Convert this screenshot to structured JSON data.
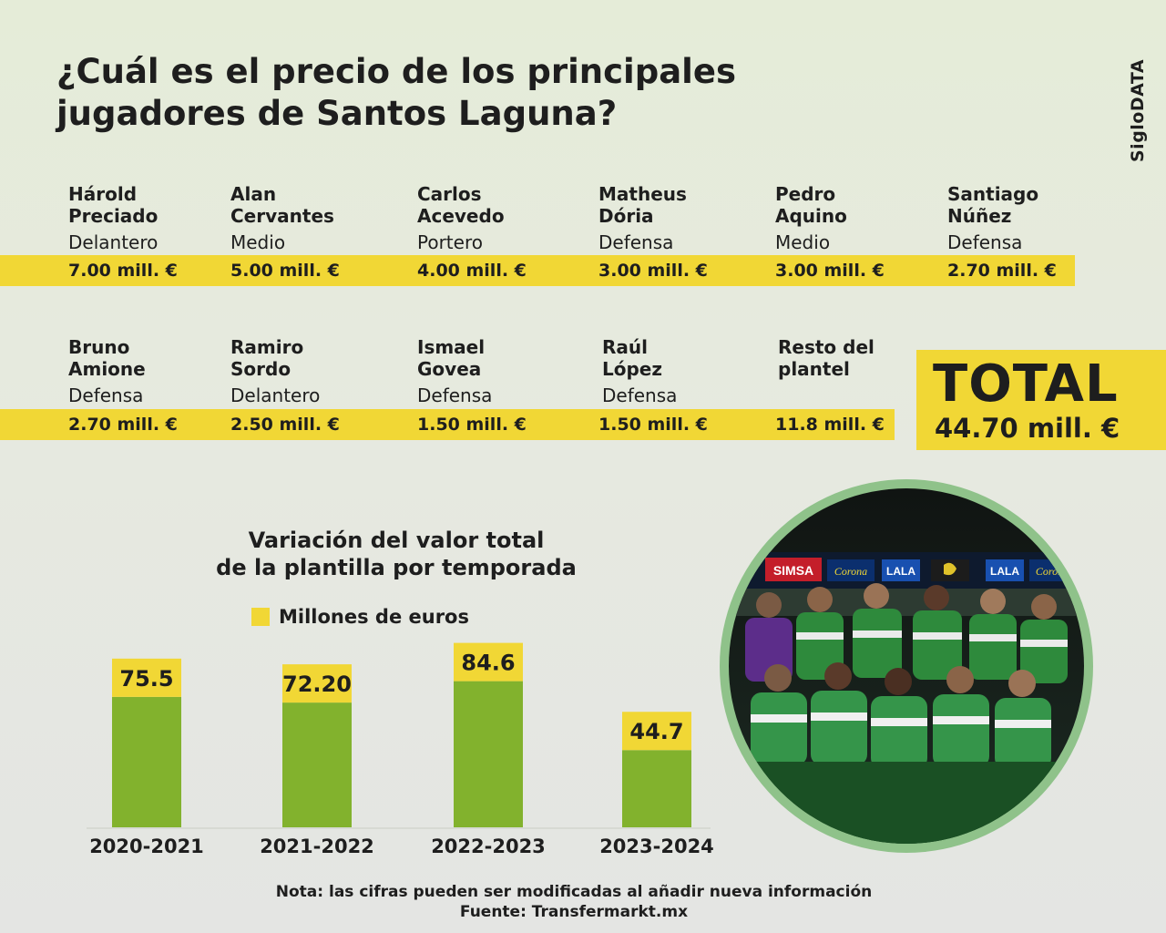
{
  "title": {
    "line1": "¿Cuál es el precio de los principales",
    "line2": "jugadores de Santos Laguna?"
  },
  "brand": "SigloDATA",
  "players_row1": [
    {
      "name1": "Hárold",
      "name2": "Preciado",
      "position": "Delantero",
      "price": "7.00 mill. €"
    },
    {
      "name1": "Alan",
      "name2": "Cervantes",
      "position": "Medio",
      "price": "5.00 mill. €"
    },
    {
      "name1": "Carlos",
      "name2": "Acevedo",
      "position": "Portero",
      "price": "4.00 mill. €"
    },
    {
      "name1": "Matheus",
      "name2": "Dória",
      "position": "Defensa",
      "price": "3.00 mill. €"
    },
    {
      "name1": "Pedro",
      "name2": "Aquino",
      "position": "Medio",
      "price": "3.00 mill. €"
    },
    {
      "name1": "Santiago",
      "name2": "Núñez",
      "position": "Defensa",
      "price": "2.70 mill. €"
    }
  ],
  "players_row2": [
    {
      "name1": "Bruno",
      "name2": "Amione",
      "position": "Defensa",
      "price": "2.70 mill. €"
    },
    {
      "name1": "Ramiro",
      "name2": "Sordo",
      "position": "Delantero",
      "price": "2.50 mill. €"
    },
    {
      "name1": "Ismael",
      "name2": "Govea",
      "position": "Defensa",
      "price": "1.50 mill. €"
    },
    {
      "name1": "Raúl",
      "name2": "López",
      "position": "Defensa",
      "price": "1.50 mill. €"
    },
    {
      "name1": "Resto del",
      "name2": "plantel",
      "position": "",
      "price": "11.8 mill. €"
    }
  ],
  "total": {
    "label": "TOTAL",
    "value": "44.70 mill. €"
  },
  "chart_data": {
    "type": "bar",
    "title": "Variación del valor total de la plantilla por temporada",
    "title_line1": "Variación del valor total",
    "title_line2": "de la plantilla por temporada",
    "legend": "Millones de euros",
    "categories": [
      "2020-2021",
      "2021-2022",
      "2022-2023",
      "2023-2024"
    ],
    "values": [
      75.5,
      72.2,
      84.6,
      44.7
    ],
    "value_labels": [
      "75.5",
      "72.20",
      "84.6",
      "44.7"
    ],
    "bar_color": "#82b22d",
    "label_color": "#f1d735",
    "ylim": [
      0,
      100
    ]
  },
  "footer": {
    "note": "Nota: las cifras pueden ser modificadas al añadir nueva información",
    "source": "Fuente: Transfermarkt.mx"
  },
  "photo": {
    "ads": [
      "SIMSA",
      "Corona",
      "LALA",
      "LALA",
      "Corona"
    ]
  },
  "colors": {
    "yellow": "#f1d735",
    "green": "#82b22d",
    "text": "#1e1e1e"
  }
}
